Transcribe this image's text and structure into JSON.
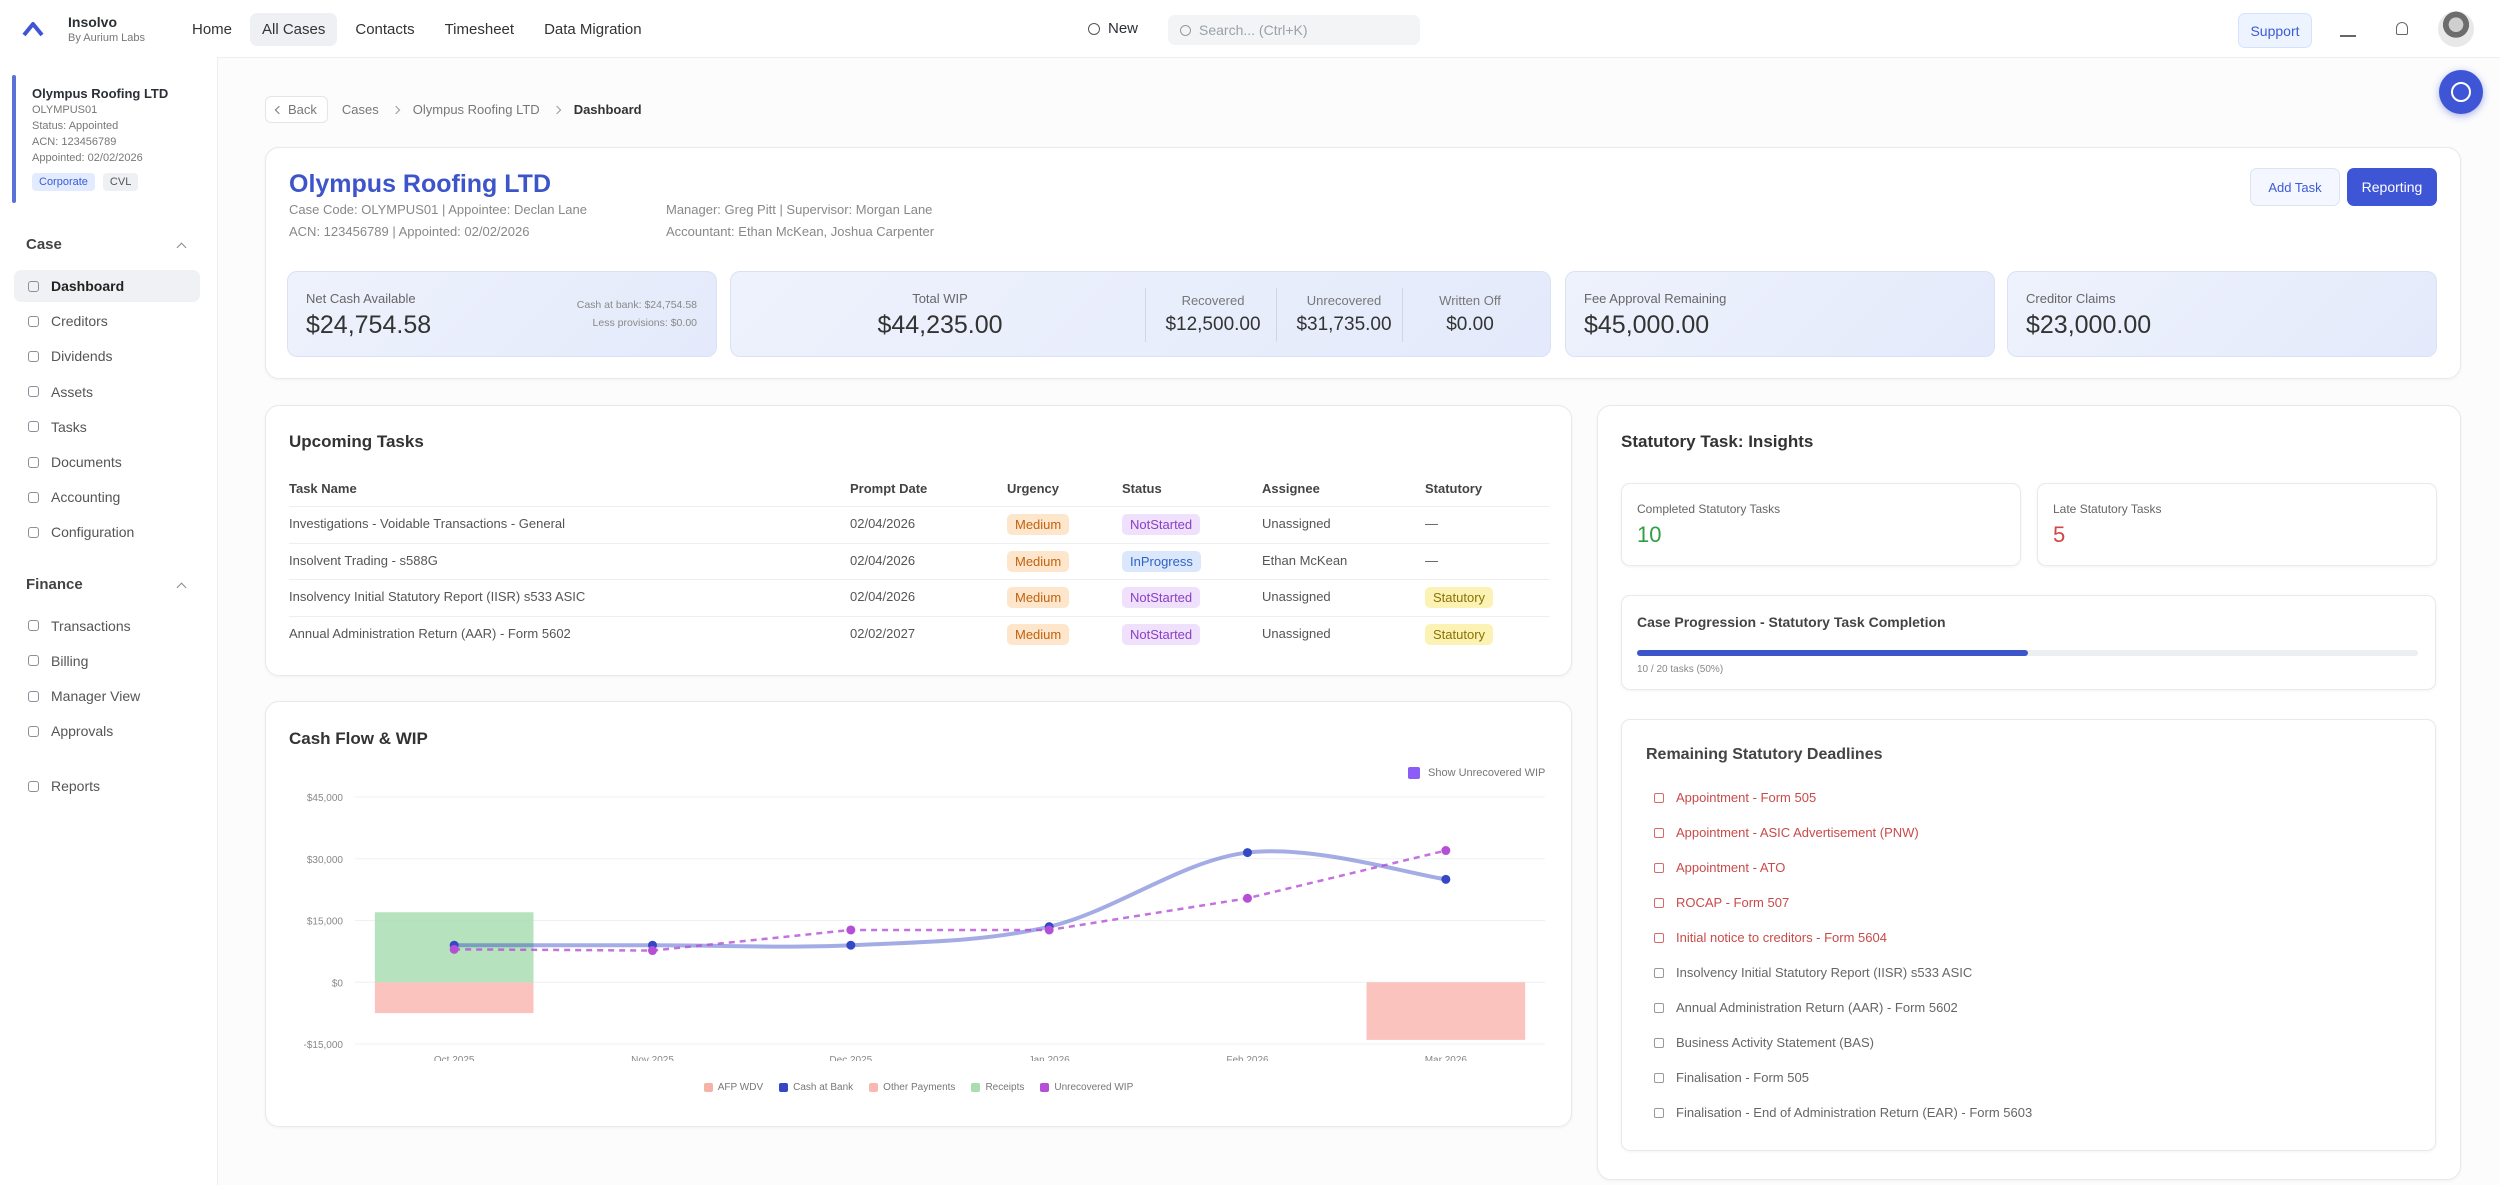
{
  "nav": {
    "brand": "Insolvo",
    "brand_sub": "By Aurium Labs",
    "items": [
      "Home",
      "All Cases",
      "Contacts",
      "Timesheet",
      "Data Migration"
    ],
    "active": 1,
    "new": "New",
    "search": "Search... (Ctrl+K)",
    "support": "Support"
  },
  "sidebar": {
    "case": {
      "name": "Olympus Roofing LTD",
      "code": "OLYMPUS01",
      "status": "Status: Appointed",
      "acn": "ACN: 123456789",
      "appointed": "Appointed: 02/02/2026",
      "tags": [
        "Corporate",
        "CVL"
      ]
    },
    "sections": [
      {
        "title": "Case",
        "items": [
          "Dashboard",
          "Creditors",
          "Dividends",
          "Assets",
          "Tasks",
          "Documents",
          "Accounting",
          "Configuration"
        ]
      },
      {
        "title": "Finance",
        "items": [
          "Transactions",
          "Billing",
          "Manager View",
          "Approvals"
        ]
      }
    ],
    "active": "Dashboard",
    "reports": "Reports"
  },
  "breadcrumb": {
    "back": "Back",
    "items": [
      "Cases",
      "Olympus Roofing LTD",
      "Dashboard"
    ]
  },
  "header": {
    "title": "Olympus Roofing LTD",
    "line1": "Case Code: OLYMPUS01 | Appointee: Declan Lane",
    "line2": "ACN: 123456789 | Appointed: 02/02/2026",
    "manager": "Manager: Greg Pitt | Supervisor: Morgan Lane",
    "accountant": "Accountant: Ethan McKean, Joshua Carpenter",
    "add_task": "Add Task",
    "reporting": "Reporting"
  },
  "stats": {
    "net_cash": {
      "label": "Net Cash Available",
      "value": "$24,754.58",
      "note1": "Cash at bank: $24,754.58",
      "note2": "Less provisions: $0.00"
    },
    "wip": {
      "label": "Total WIP",
      "value": "$44,235.00",
      "parts": [
        {
          "label": "Recovered",
          "value": "$12,500.00"
        },
        {
          "label": "Unrecovered",
          "value": "$31,735.00"
        },
        {
          "label": "Written Off",
          "value": "$0.00"
        }
      ]
    },
    "fee": {
      "label": "Fee Approval Remaining",
      "value": "$45,000.00"
    },
    "claims": {
      "label": "Creditor Claims",
      "value": "$23,000.00"
    }
  },
  "tasks": {
    "title": "Upcoming Tasks",
    "columns": [
      "Task Name",
      "Prompt Date",
      "Urgency",
      "Status",
      "Assignee",
      "Statutory"
    ],
    "rows": [
      [
        "Investigations - Voidable Transactions - General",
        "02/04/2026",
        {
          "text": "Medium",
          "color": "#c2620e",
          "bg": "#fde6cc"
        },
        {
          "text": "NotStarted",
          "color": "#8a3fc4",
          "bg": "#efe0fb"
        },
        "Unassigned",
        "—"
      ],
      [
        "Insolvent Trading - s588G",
        "02/04/2026",
        {
          "text": "Medium",
          "color": "#c2620e",
          "bg": "#fde6cc"
        },
        {
          "text": "InProgress",
          "color": "#2f63c5",
          "bg": "#dbe8fb"
        },
        "Ethan McKean",
        "—"
      ],
      [
        "Insolvency Initial Statutory Report (IISR) s533 ASIC",
        "02/04/2026",
        {
          "text": "Medium",
          "color": "#c2620e",
          "bg": "#fde6cc"
        },
        {
          "text": "NotStarted",
          "color": "#8a3fc4",
          "bg": "#efe0fb"
        },
        "Unassigned",
        {
          "text": "Statutory",
          "color": "#8a7205",
          "bg": "#fcf2b3"
        }
      ],
      [
        "Annual Administration Return (AAR) - Form 5602",
        "02/02/2027",
        {
          "text": "Medium",
          "color": "#c2620e",
          "bg": "#fde6cc"
        },
        {
          "text": "NotStarted",
          "color": "#8a3fc4",
          "bg": "#efe0fb"
        },
        "Unassigned",
        {
          "text": "Statutory",
          "color": "#8a7205",
          "bg": "#fcf2b3"
        }
      ]
    ]
  },
  "chart_data": {
    "type": "combo",
    "title": "Cash Flow & WIP",
    "toggle": "Show Unrecovered WIP",
    "categories": [
      "Oct 2025",
      "Nov 2025",
      "Dec 2025",
      "Jan 2026",
      "Feb 2026",
      "Mar 2026"
    ],
    "ylim": [
      -15000,
      45000
    ],
    "yticks": [
      {
        "value": -15000,
        "label": "-$15,000"
      },
      {
        "value": 0,
        "label": "$0"
      },
      {
        "value": 15000,
        "label": "$15,000"
      },
      {
        "value": 30000,
        "label": "$30,000"
      },
      {
        "value": 45000,
        "label": "$45,000"
      }
    ],
    "grid": true,
    "series": [
      {
        "name": "AFP WDV",
        "type": "bar",
        "color": "#f6b2a6",
        "values": [
          null,
          null,
          null,
          null,
          null,
          null
        ]
      },
      {
        "name": "Cash at Bank",
        "type": "line",
        "smooth": true,
        "color": "#3447c4",
        "values": [
          9000,
          9000,
          9000,
          13500,
          31500,
          25000
        ]
      },
      {
        "name": "Other Payments",
        "type": "bar",
        "color": "#fab8b3",
        "values": [
          -7500,
          null,
          null,
          null,
          null,
          -14000
        ]
      },
      {
        "name": "Receipts",
        "type": "bar",
        "color": "#a9deb2",
        "values": [
          17000,
          null,
          null,
          null,
          null,
          null
        ]
      },
      {
        "name": "Unrecovered WIP",
        "type": "line",
        "dashed": true,
        "color": "#b44fd6",
        "values": [
          8000,
          7700,
          12700,
          12700,
          20400,
          32000
        ]
      }
    ]
  },
  "statutory": {
    "title": "Statutory Task: Insights",
    "completed": {
      "label": "Completed Statutory Tasks",
      "value": "10",
      "color": "#2f9e44"
    },
    "late": {
      "label": "Late Statutory Tasks",
      "value": "5",
      "color": "#d64545"
    },
    "progress": {
      "title": "Case Progression - Statutory Task Completion",
      "percent": 50,
      "label": "10 / 20 tasks (50%)"
    },
    "deadlines": {
      "title": "Remaining Statutory Deadlines",
      "items": [
        {
          "text": "Appointment - Form 505",
          "overdue": true
        },
        {
          "text": "Appointment - ASIC Advertisement (PNW)",
          "overdue": true
        },
        {
          "text": "Appointment - ATO",
          "overdue": true
        },
        {
          "text": "ROCAP - Form 507",
          "overdue": true
        },
        {
          "text": "Initial notice to creditors - Form 5604",
          "overdue": true
        },
        {
          "text": "Insolvency Initial Statutory Report (IISR) s533 ASIC",
          "overdue": false
        },
        {
          "text": "Annual Administration Return (AAR) - Form 5602",
          "overdue": false
        },
        {
          "text": "Business Activity Statement (BAS)",
          "overdue": false
        },
        {
          "text": "Finalisation - Form 505",
          "overdue": false
        },
        {
          "text": "Finalisation - End of Administration Return (EAR) - Form 5603",
          "overdue": false
        }
      ]
    }
  }
}
